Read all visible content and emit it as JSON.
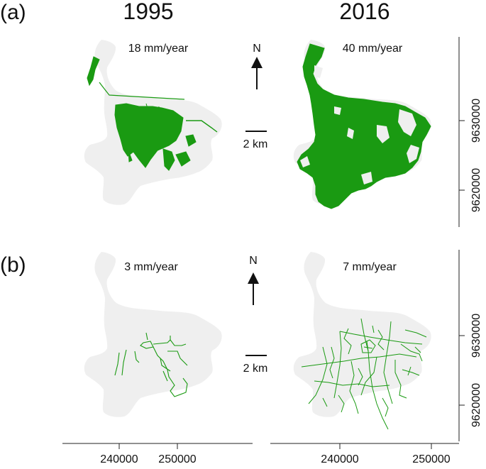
{
  "figure": {
    "years": [
      "1995",
      "2016"
    ],
    "panels": [
      {
        "label": "(a)",
        "rates": [
          "18 mm/year",
          "40 mm/year"
        ],
        "north": "N",
        "scale": "2 km",
        "y_ticks": [
          "9630000",
          "9620000"
        ]
      },
      {
        "label": "(b)",
        "rates": [
          "3 mm/year",
          "7 mm/year"
        ],
        "north": "N",
        "scale": "2 km",
        "y_ticks": [
          "9630000",
          "9620000"
        ]
      }
    ],
    "x_ticks": [
      "240000",
      "250000"
    ],
    "colors": {
      "region": "#efefef",
      "feature": "#1a9a12",
      "axis": "#222222"
    }
  }
}
